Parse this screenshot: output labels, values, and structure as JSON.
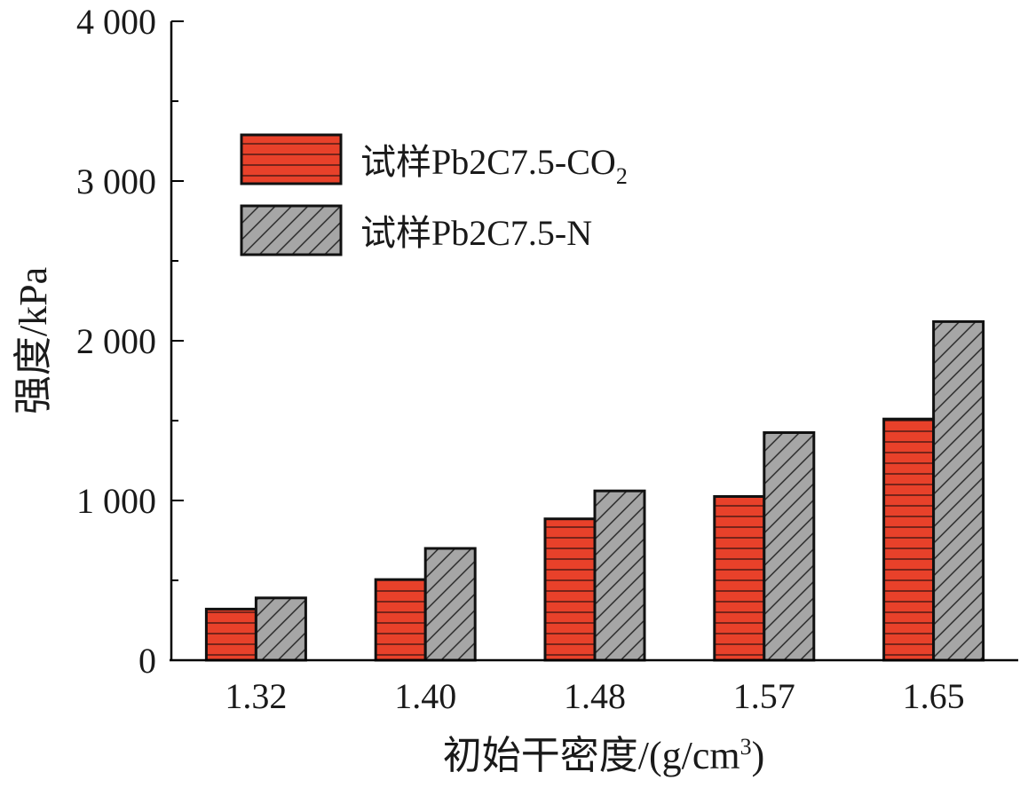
{
  "chart_data": {
    "type": "bar",
    "xlabel_main": "初始干密度/(g/cm",
    "xlabel_sup": "3",
    "xlabel_end": ")",
    "ylabel": "强度/kPa",
    "categories": [
      "1.32",
      "1.40",
      "1.48",
      "1.57",
      "1.65"
    ],
    "ylim": [
      0,
      4000
    ],
    "yticks": [
      0,
      1000,
      2000,
      3000,
      4000
    ],
    "ytick_labels": [
      "0",
      "1 000",
      "2 000",
      "3 000",
      "4 000"
    ],
    "grid": false,
    "legend_position": "top-left",
    "series": [
      {
        "name": "试样Pb2C7.5-CO",
        "name_sub": "2",
        "fill": "#e8412a",
        "pattern": "horizontal-lines",
        "values": [
          320,
          505,
          885,
          1025,
          1510
        ]
      },
      {
        "name": "试样Pb2C7.5-N",
        "name_sub": "",
        "fill": "#a6a6a6",
        "pattern": "diagonal-hatch",
        "values": [
          390,
          700,
          1060,
          1425,
          2120
        ]
      }
    ]
  }
}
